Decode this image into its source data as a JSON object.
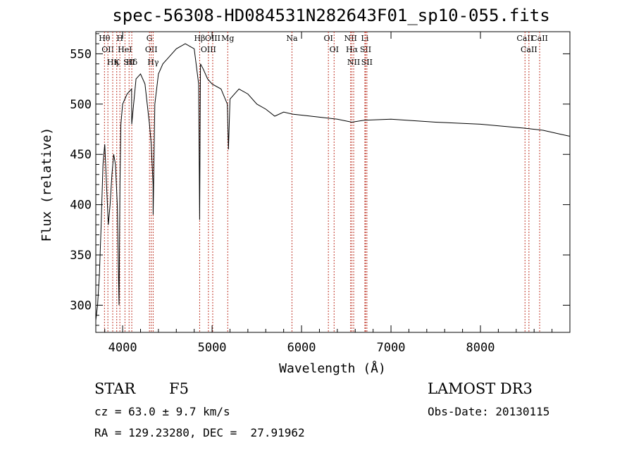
{
  "chart_data": {
    "type": "line",
    "title": "spec-56308-HD084531N282643F01_sp10-055.fits",
    "xlabel": "Wavelength (Å)",
    "ylabel": "Flux (relative)",
    "xlim": [
      3700,
      9000
    ],
    "ylim": [
      273,
      572
    ],
    "xticks": [
      4000,
      5000,
      6000,
      7000,
      8000
    ],
    "yticks": [
      300,
      350,
      400,
      450,
      500,
      550
    ],
    "series": [
      {
        "x": [
          3700,
          3720,
          3740,
          3760,
          3780,
          3800,
          3820,
          3840,
          3860,
          3880,
          3900,
          3920,
          3940,
          3960,
          3970,
          3980,
          4000,
          4050,
          4100,
          4102,
          4150,
          4200,
          4250,
          4300,
          4320,
          4340,
          4341,
          4360,
          4400,
          4450,
          4500,
          4600,
          4700,
          4800,
          4850,
          4861,
          4870,
          4900,
          4950,
          5000,
          5100,
          5170,
          5183,
          5200,
          5300,
          5400,
          5500,
          5600,
          5700,
          5800,
          5900,
          6000,
          6200,
          6400,
          6563,
          6700,
          7000,
          7500,
          8000,
          8500,
          8700,
          8900,
          9000
        ],
        "y": [
          285,
          300,
          330,
          380,
          440,
          460,
          420,
          380,
          400,
          430,
          450,
          440,
          400,
          300,
          420,
          480,
          500,
          510,
          515,
          480,
          525,
          530,
          520,
          480,
          460,
          420,
          390,
          500,
          530,
          540,
          545,
          555,
          560,
          555,
          520,
          385,
          540,
          535,
          525,
          520,
          515,
          500,
          455,
          505,
          515,
          510,
          500,
          495,
          488,
          492,
          490,
          489,
          487,
          485,
          482,
          484,
          485,
          482,
          480,
          476,
          474,
          470,
          468
        ]
      }
    ],
    "lines": [
      {
        "x": 3797,
        "label": "Hθ"
      },
      {
        "x": 3835,
        "label": "OII"
      },
      {
        "x": 3889,
        "label": "Hη"
      },
      {
        "x": 3934,
        "label": "K"
      },
      {
        "x": 3969,
        "label": "H"
      },
      {
        "x": 4026,
        "label": "HeI"
      },
      {
        "x": 4072,
        "label": "SII"
      },
      {
        "x": 4102,
        "label": "Hδ"
      },
      {
        "x": 4300,
        "label": "G"
      },
      {
        "x": 4320,
        "label": "OII"
      },
      {
        "x": 4341,
        "label": "Hγ"
      },
      {
        "x": 4861,
        "label": "Hβ"
      },
      {
        "x": 4959,
        "label": "OIII"
      },
      {
        "x": 5007,
        "label": "OIII"
      },
      {
        "x": 5175,
        "label": "Mg"
      },
      {
        "x": 5893,
        "label": "Na"
      },
      {
        "x": 6300,
        "label": "OI"
      },
      {
        "x": 6364,
        "label": "OI"
      },
      {
        "x": 6548,
        "label": "NII"
      },
      {
        "x": 6563,
        "label": "Hα"
      },
      {
        "x": 6583,
        "label": "NII"
      },
      {
        "x": 6708,
        "label": "Li"
      },
      {
        "x": 6716,
        "label": "SII"
      },
      {
        "x": 6731,
        "label": "SII"
      },
      {
        "x": 8498,
        "label": "CaII"
      },
      {
        "x": 8542,
        "label": "CaII"
      },
      {
        "x": 8662,
        "label": "CaII"
      }
    ]
  },
  "info": {
    "object_class": "STAR",
    "subclass": "F5",
    "survey": "LAMOST DR3",
    "cz": "cz = 63.0 ± 9.7 km/s",
    "obs_date": "Obs-Date: 20130115",
    "radec": "RA = 129.23280, DEC =  27.91962"
  }
}
